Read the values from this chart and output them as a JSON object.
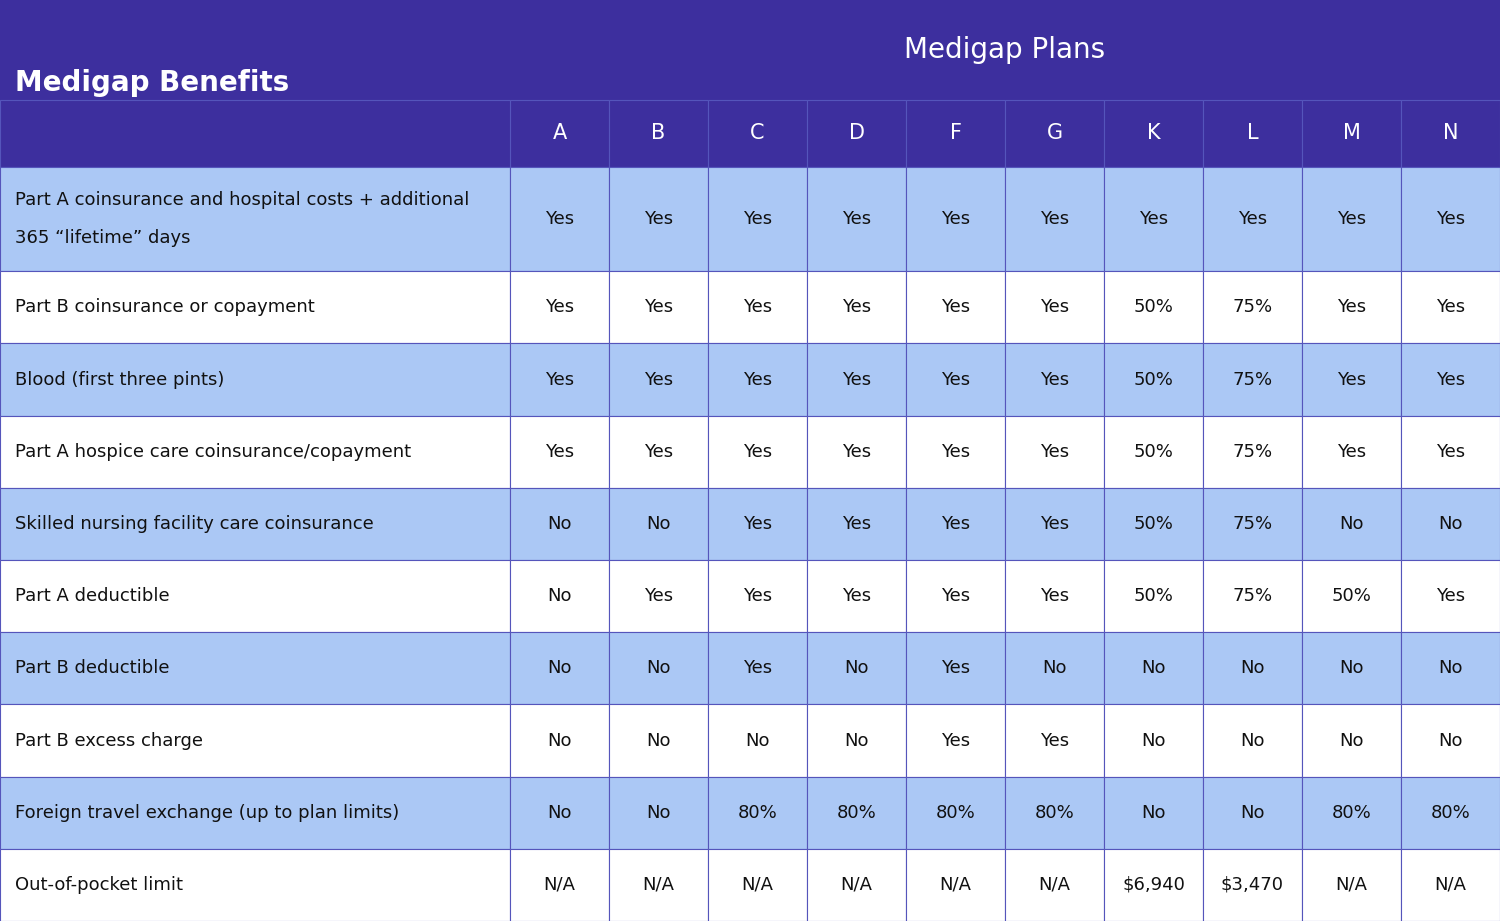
{
  "title": "Medigap Plans",
  "benefits_header": "Medigap Benefits",
  "plans": [
    "A",
    "B",
    "C",
    "D",
    "F",
    "G",
    "K",
    "L",
    "M",
    "N"
  ],
  "benefits": [
    "Part A coinsurance and hospital costs + additional\n365 “lifetime” days",
    "Part B coinsurance or copayment",
    "Blood (first three pints)",
    "Part A hospice care coinsurance/copayment",
    "Skilled nursing facility care coinsurance",
    "Part A deductible",
    "Part B deductible",
    "Part B excess charge",
    "Foreign travel exchange (up to plan limits)",
    "Out-of-pocket limit"
  ],
  "table_data": [
    [
      "Yes",
      "Yes",
      "Yes",
      "Yes",
      "Yes",
      "Yes",
      "Yes",
      "Yes",
      "Yes",
      "Yes"
    ],
    [
      "Yes",
      "Yes",
      "Yes",
      "Yes",
      "Yes",
      "Yes",
      "50%",
      "75%",
      "Yes",
      "Yes"
    ],
    [
      "Yes",
      "Yes",
      "Yes",
      "Yes",
      "Yes",
      "Yes",
      "50%",
      "75%",
      "Yes",
      "Yes"
    ],
    [
      "Yes",
      "Yes",
      "Yes",
      "Yes",
      "Yes",
      "Yes",
      "50%",
      "75%",
      "Yes",
      "Yes"
    ],
    [
      "No",
      "No",
      "Yes",
      "Yes",
      "Yes",
      "Yes",
      "50%",
      "75%",
      "No",
      "No"
    ],
    [
      "No",
      "Yes",
      "Yes",
      "Yes",
      "Yes",
      "Yes",
      "50%",
      "75%",
      "50%",
      "Yes"
    ],
    [
      "No",
      "No",
      "Yes",
      "No",
      "Yes",
      "No",
      "No",
      "No",
      "No",
      "No"
    ],
    [
      "No",
      "No",
      "No",
      "No",
      "Yes",
      "Yes",
      "No",
      "No",
      "No",
      "No"
    ],
    [
      "No",
      "No",
      "80%",
      "80%",
      "80%",
      "80%",
      "No",
      "No",
      "80%",
      "80%"
    ],
    [
      "N/A",
      "N/A",
      "N/A",
      "N/A",
      "N/A",
      "N/A",
      "$6,940",
      "$3,470",
      "N/A",
      "N/A"
    ]
  ],
  "header_bg": "#3d2f9e",
  "header_text": "#ffffff",
  "row_bg_even": "#abc8f5",
  "row_bg_odd": "#ffffff",
  "cell_border": "#5555bb",
  "cell_text": "#111111",
  "title_fontsize": 20,
  "header_fontsize": 15,
  "cell_fontsize": 13,
  "benefit_fontsize": 13,
  "fig_width": 15.0,
  "fig_height": 9.21,
  "dpi": 100
}
